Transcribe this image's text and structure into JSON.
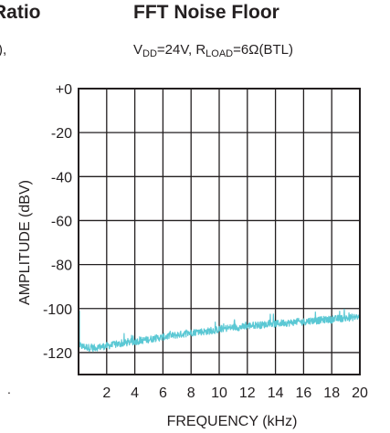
{
  "left_partial": {
    "title": "Ratio",
    "condition": "),"
  },
  "chart_data": {
    "type": "line",
    "title": "FFT Noise Floor",
    "condition_parts": {
      "vdd_main": "V",
      "vdd_sub": "DD",
      "vdd_rest": "=24V, ",
      "rload_main": "R",
      "rload_sub": "LOAD",
      "rload_rest": "=6Ω(BTL)"
    },
    "xlabel": "FREQUENCY (kHz)",
    "ylabel": "AMPLITUDE (dBV)",
    "xlim": [
      0,
      20
    ],
    "ylim": [
      -130,
      0
    ],
    "x_ticks": [
      2,
      4,
      6,
      8,
      10,
      12,
      14,
      16,
      18,
      20
    ],
    "x_tick_labels": [
      "2",
      "4",
      "6",
      "8",
      "10",
      "12",
      "14",
      "16",
      "18",
      "20"
    ],
    "y_ticks": [
      0,
      -20,
      -40,
      -60,
      -80,
      -100,
      -120
    ],
    "y_tick_labels": [
      "+0",
      "-20",
      "-40",
      "-60",
      "-80",
      "-100",
      "-120"
    ],
    "grid": true,
    "series_color": "#5bc8d4",
    "series": [
      {
        "x": [
          0.1,
          0.5,
          1,
          1.5,
          2,
          2.5,
          3,
          3.5,
          4,
          4.5,
          5,
          5.5,
          6,
          6.5,
          7,
          7.5,
          8,
          8.5,
          9,
          9.5,
          10,
          10.5,
          11,
          11.5,
          12,
          12.5,
          13,
          13.5,
          14,
          14.5,
          15,
          15.5,
          16,
          16.5,
          17,
          17.5,
          18,
          18.5,
          19,
          19.5,
          20
        ],
        "values": [
          -117,
          -117.5,
          -118,
          -117.5,
          -117,
          -116.5,
          -116,
          -115.5,
          -115,
          -114.5,
          -114,
          -113.5,
          -113,
          -112.5,
          -112,
          -111.5,
          -111,
          -110.5,
          -110.5,
          -110,
          -109.5,
          -109,
          -108.5,
          -108.5,
          -108,
          -107.5,
          -107.5,
          -107,
          -107,
          -106.5,
          -106.5,
          -106,
          -106,
          -105.5,
          -105.5,
          -105,
          -105,
          -104.5,
          -104.5,
          -104,
          -104
        ]
      }
    ]
  }
}
